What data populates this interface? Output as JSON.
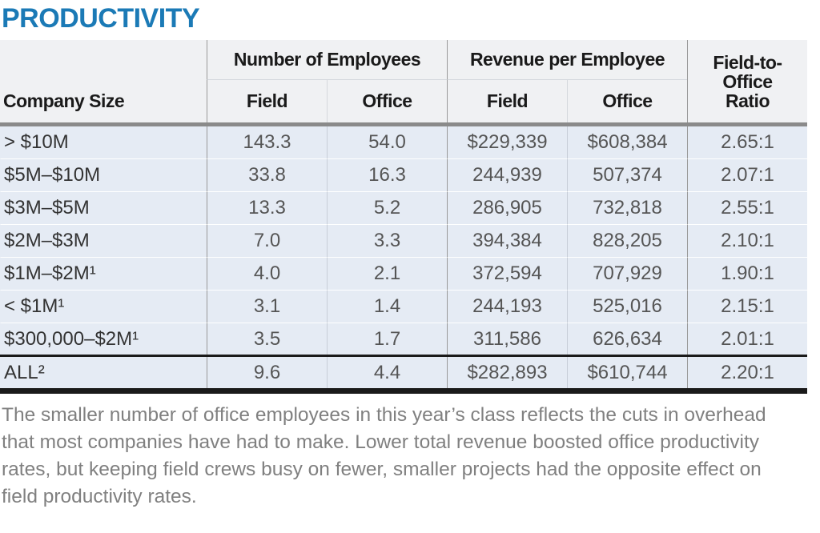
{
  "title": "PRODUCTIVITY",
  "table": {
    "corner": "Company Size",
    "header_groups": [
      "Number of Employees",
      "Revenue per Employee"
    ],
    "ratio_header": "Field-to-Office Ratio",
    "subheaders": [
      "Field",
      "Office",
      "Field",
      "Office"
    ],
    "rows": [
      [
        "> $10M",
        "143.3",
        "54.0",
        "$229,339",
        "$608,384",
        "2.65:1"
      ],
      [
        "$5M–$10M",
        "33.8",
        "16.3",
        "244,939",
        "507,374",
        "2.07:1"
      ],
      [
        "$3M–$5M",
        "13.3",
        "5.2",
        "286,905",
        "732,818",
        "2.55:1"
      ],
      [
        "$2M–$3M",
        "7.0",
        "3.3",
        "394,384",
        "828,205",
        "2.10:1"
      ],
      [
        "$1M–$2M¹",
        "4.0",
        "2.1",
        "372,594",
        "707,929",
        "1.90:1"
      ],
      [
        "< $1M¹",
        "3.1",
        "1.4",
        "244,193",
        "525,016",
        "2.15:1"
      ],
      [
        "$300,000–$2M¹",
        "3.5",
        "1.7",
        "311,586",
        "626,634",
        "2.01:1"
      ]
    ],
    "total": [
      "ALL²",
      "9.6",
      "4.4",
      "$282,893",
      "$610,744",
      "2.20:1"
    ]
  },
  "caption": "The smaller number of office employees in this year’s class reflects the cuts in overhead that most companies have had to make. Lower total revenue boosted office productivity rates, but keeping field crews busy on fewer, smaller projects had the opposite effect on field productivity rates."
}
